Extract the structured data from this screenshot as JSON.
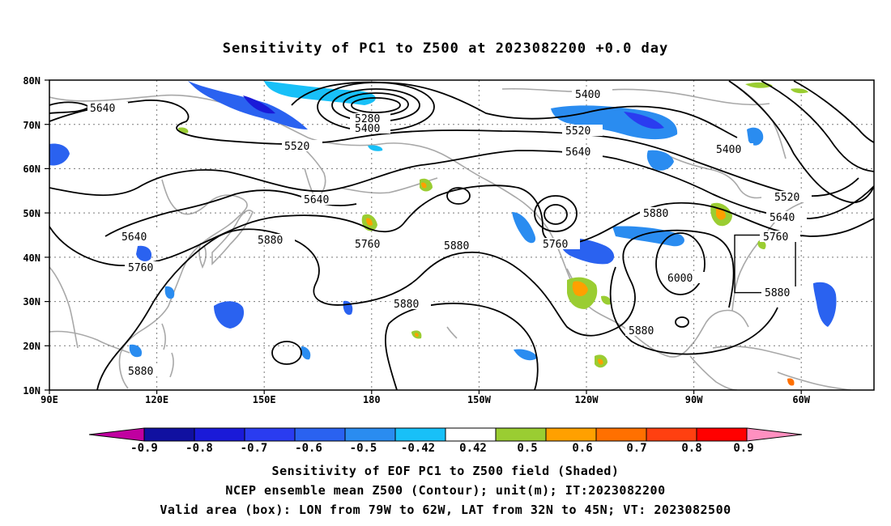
{
  "title": "Sensitivity of PC1 to Z500 at 2023082200 +0.0 day",
  "lat_labels": [
    "80N",
    "70N",
    "60N",
    "50N",
    "40N",
    "30N",
    "20N",
    "10N"
  ],
  "lon_labels": [
    "90E",
    "120E",
    "150E",
    "180",
    "150W",
    "120W",
    "90W",
    "60W"
  ],
  "contour_labels": {
    "c5640_nw": "5640",
    "c5280": "5280",
    "c5400_pac": "5400",
    "c5520_pac": "5520",
    "c5640_pac": "5640",
    "c5400_can": "5400",
    "c5520_can": "5520",
    "c5640_can": "5640",
    "c5400_e": "5400",
    "c5520_e": "5520",
    "c5640_e": "5640",
    "c5760_e": "5760",
    "c5880_us": "5880",
    "c6000": "6000",
    "c5880_box": "5880",
    "c5880_gulf": "5880",
    "c5640_w": "5640",
    "c5760_w": "5760",
    "c5880_w": "5880",
    "c5760_pac": "5760",
    "c5880_pac": "5880",
    "c5760_wc": "5760",
    "c5880_sub": "5880",
    "c5880_sw": "5880"
  },
  "colorbar": {
    "labels": [
      "-0.9",
      "-0.8",
      "-0.7",
      "-0.6",
      "-0.5",
      "-0.42",
      "0.42",
      "0.5",
      "0.6",
      "0.7",
      "0.8",
      "0.9"
    ],
    "colors": [
      "#c000a0",
      "#1010a0",
      "#1a1ad8",
      "#2a3cf0",
      "#2a62f0",
      "#2a8cf0",
      "#18c0f8",
      "#ffffff",
      "#9acd32",
      "#ffa000",
      "#ff7000",
      "#ff4010",
      "#ff0000",
      "#ff90c0"
    ]
  },
  "captions": [
    "Sensitivity of EOF PC1 to Z500 field (Shaded)",
    "NCEP ensemble mean Z500 (Contour); unit(m); IT:2023082200",
    "Valid area (box): LON from 79W to 62W, LAT from 32N to 45N; VT: 2023082500"
  ],
  "valid_area": {
    "lon_min": -79,
    "lon_max": -62,
    "lat_min": 32,
    "lat_max": 45
  }
}
